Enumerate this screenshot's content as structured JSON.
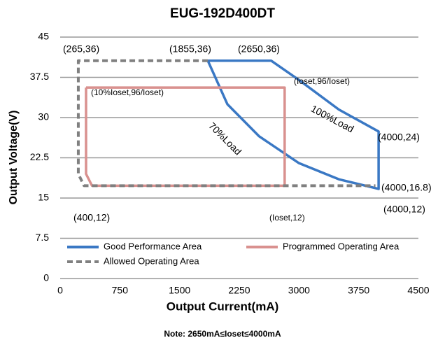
{
  "chart_data": {
    "type": "line",
    "title": "EUG-192D400DT",
    "x_label": "Output Current(mA)",
    "y_label": "Output Voltage(V)",
    "note": "Note:  2650mA≤Ioset≤4000mA",
    "xlim": [
      0,
      4500
    ],
    "xticks": [
      0,
      750,
      1500,
      2250,
      3000,
      3750,
      4500
    ],
    "ylim": [
      0,
      45
    ],
    "yticks": [
      0,
      7.5,
      15,
      22.5,
      30,
      37.5,
      45
    ],
    "grid": true,
    "legend": "lower left",
    "series": [
      {
        "name": "Good Performance Area",
        "color": "#3a78c4",
        "dash": false,
        "x": [
          1855,
          2650,
          3000,
          3500,
          4000,
          4000,
          3500,
          3000,
          2500,
          2100,
          1855
        ],
        "values": [
          40.6,
          40.6,
          37,
          31.5,
          27.4,
          16.7,
          18.5,
          21.5,
          26.5,
          32.5,
          40.6
        ]
      },
      {
        "name": "Programmed Operating Area",
        "color": "#d9918f",
        "dash": false,
        "x": [
          325,
          325,
          400,
          2820,
          2820,
          325
        ],
        "values": [
          35.6,
          19.5,
          17.3,
          17.3,
          35.6,
          35.6
        ]
      },
      {
        "name": "Allowed Operating Area",
        "color": "#808080",
        "dash": true,
        "x": [
          1855,
          228,
          228,
          300,
          3960
        ],
        "values": [
          40.6,
          40.6,
          19.5,
          17.3,
          17.3
        ]
      }
    ],
    "annotations": [
      "(265,36)",
      "(1855,36)",
      "(2650,36)",
      "(10%Ioset,96/Ioset)",
      "(Ioset,96/Ioset)",
      "100%Load",
      "70%Load",
      "(4000,24)",
      "(4000,16.8)",
      "(4000,12)",
      "(400,12)",
      "(Ioset,12)"
    ]
  }
}
